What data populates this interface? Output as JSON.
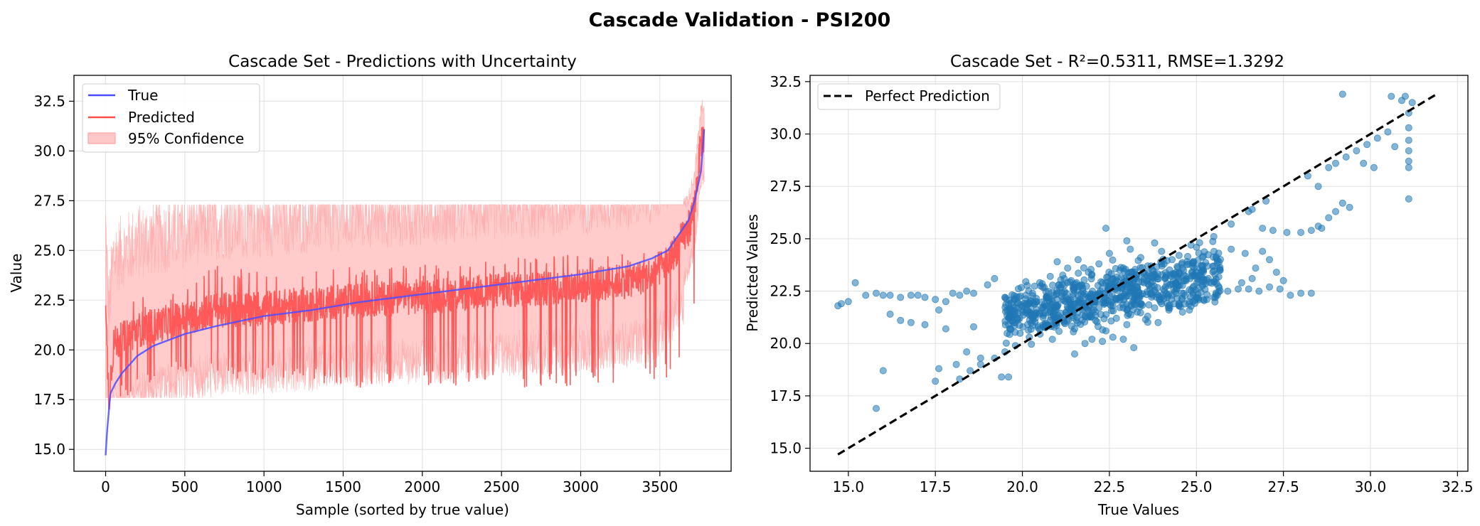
{
  "figure": {
    "suptitle": "Cascade Validation - PSI200"
  },
  "chart_data": [
    {
      "type": "line",
      "title": "Cascade Set - Predictions with Uncertainty",
      "xlabel": "Sample (sorted by true value)",
      "ylabel": "Value",
      "xlim": [
        -200,
        3950
      ],
      "ylim": [
        13.9,
        33.8
      ],
      "xticks": [
        0,
        500,
        1000,
        1500,
        2000,
        2500,
        3000,
        3500
      ],
      "xtick_labels": [
        "0",
        "500",
        "1000",
        "1500",
        "2000",
        "2500",
        "3000",
        "3500"
      ],
      "yticks": [
        15.0,
        17.5,
        20.0,
        22.5,
        25.0,
        27.5,
        30.0,
        32.5
      ],
      "ytick_labels": [
        "15.0",
        "17.5",
        "20.0",
        "22.5",
        "25.0",
        "27.5",
        "30.0",
        "32.5"
      ],
      "grid": true,
      "legend_position": "top-left",
      "n_samples": 3780,
      "series": [
        {
          "name": "True",
          "color": "#4c4cff",
          "x": [
            0,
            10,
            30,
            60,
            100,
            200,
            300,
            500,
            700,
            1000,
            1300,
            1600,
            2000,
            2500,
            3000,
            3300,
            3450,
            3550,
            3620,
            3680,
            3720,
            3760,
            3780
          ],
          "values": [
            14.7,
            16.0,
            17.8,
            18.3,
            18.8,
            19.7,
            20.2,
            20.8,
            21.2,
            21.7,
            22.0,
            22.4,
            22.8,
            23.3,
            23.8,
            24.2,
            24.6,
            25.0,
            25.8,
            26.5,
            27.5,
            29.0,
            31.1
          ]
        },
        {
          "name": "Predicted",
          "color": "#ff4c4c",
          "x": [
            0,
            20,
            50,
            100,
            200,
            300,
            500,
            700,
            1000,
            1300,
            1600,
            2000,
            2500,
            3000,
            3300,
            3450,
            3550,
            3620,
            3680,
            3720,
            3760,
            3780
          ],
          "values": [
            21.8,
            17.5,
            20.3,
            20.5,
            21.0,
            21.2,
            21.6,
            22.0,
            22.1,
            22.3,
            22.5,
            22.7,
            23.0,
            23.2,
            23.5,
            23.8,
            24.4,
            25.3,
            26.0,
            27.3,
            30.5,
            30.8
          ],
          "band_min": [
            17.0,
            17.0,
            17.0,
            17.5,
            18.0,
            18.3,
            18.8,
            18.6,
            18.5,
            18.3,
            18.0,
            18.2,
            18.0,
            18.2,
            18.3,
            18.3,
            18.6,
            19.0,
            20.0,
            22.0,
            26.5,
            27.0
          ],
          "band_max": [
            23.0,
            22.6,
            22.6,
            22.9,
            22.8,
            22.7,
            23.3,
            24.3,
            24.0,
            24.0,
            24.2,
            24.3,
            24.8,
            24.9,
            25.0,
            25.0,
            25.3,
            26.5,
            27.0,
            28.5,
            32.0,
            31.5
          ]
        },
        {
          "name": "95% Confidence",
          "color": "#ffc8c8",
          "band_min_value": 17.6,
          "band_max_value": 27.3
        }
      ]
    },
    {
      "type": "scatter",
      "title": "Cascade Set - R²=0.5311, RMSE=1.3292",
      "xlabel": "True Values",
      "ylabel": "Predicted Values",
      "xlim": [
        13.9,
        32.8
      ],
      "ylim": [
        13.9,
        32.8
      ],
      "xticks": [
        15.0,
        17.5,
        20.0,
        22.5,
        25.0,
        27.5,
        30.0,
        32.5
      ],
      "xtick_labels": [
        "15.0",
        "17.5",
        "20.0",
        "22.5",
        "25.0",
        "27.5",
        "30.0",
        "32.5"
      ],
      "yticks": [
        15.0,
        17.5,
        20.0,
        22.5,
        25.0,
        27.5,
        30.0,
        32.5
      ],
      "ytick_labels": [
        "15.0",
        "17.5",
        "20.0",
        "22.5",
        "25.0",
        "27.5",
        "30.0",
        "32.5"
      ],
      "grid": true,
      "legend_position": "top-left",
      "point_color": "#1f77b4",
      "series": [
        {
          "name": "Perfect Prediction",
          "color": "#000000",
          "x": [
            14.7,
            31.9
          ],
          "values": [
            14.7,
            31.9
          ]
        }
      ],
      "points": [
        [
          14.7,
          21.8
        ],
        [
          14.8,
          21.9
        ],
        [
          15.0,
          22.0
        ],
        [
          15.2,
          22.9
        ],
        [
          15.5,
          22.3
        ],
        [
          15.8,
          22.4
        ],
        [
          16.0,
          22.3
        ],
        [
          16.2,
          22.3
        ],
        [
          16.5,
          22.2
        ],
        [
          16.8,
          22.3
        ],
        [
          17.0,
          22.3
        ],
        [
          17.2,
          22.2
        ],
        [
          17.5,
          22.1
        ],
        [
          17.6,
          21.6
        ],
        [
          17.8,
          22.0
        ],
        [
          18.0,
          22.4
        ],
        [
          18.2,
          22.3
        ],
        [
          18.4,
          22.5
        ],
        [
          18.6,
          22.4
        ],
        [
          15.8,
          16.9
        ],
        [
          16.0,
          18.7
        ],
        [
          16.2,
          21.4
        ],
        [
          16.5,
          21.1
        ],
        [
          16.8,
          21.0
        ],
        [
          17.2,
          20.9
        ],
        [
          17.5,
          18.2
        ],
        [
          17.6,
          18.8
        ],
        [
          17.8,
          20.7
        ],
        [
          18.1,
          19.0
        ],
        [
          18.4,
          19.6
        ],
        [
          18.6,
          20.8
        ],
        [
          18.8,
          19.3
        ],
        [
          19.0,
          22.8
        ],
        [
          19.2,
          23.1
        ],
        [
          19.4,
          18.4
        ],
        [
          19.6,
          18.4
        ],
        [
          18.2,
          18.3
        ],
        [
          18.5,
          18.7
        ],
        [
          18.8,
          19.0
        ],
        [
          19.2,
          19.3
        ],
        [
          19.5,
          19.6
        ],
        [
          19.8,
          19.9
        ],
        [
          20.2,
          20.3
        ],
        [
          20.6,
          20.8
        ],
        [
          21.0,
          21.2
        ],
        [
          21.5,
          21.6
        ],
        [
          22.0,
          22.1
        ],
        [
          22.5,
          22.6
        ],
        [
          23.0,
          23.0
        ],
        [
          23.5,
          23.4
        ],
        [
          24.0,
          23.8
        ],
        [
          24.5,
          24.2
        ],
        [
          25.0,
          24.6
        ],
        [
          25.5,
          25.1
        ],
        [
          26.0,
          25.7
        ],
        [
          26.5,
          26.3
        ],
        [
          27.0,
          26.8
        ],
        [
          19.5,
          22.2
        ],
        [
          19.8,
          22.1
        ],
        [
          20.1,
          22.3
        ],
        [
          20.4,
          22.0
        ],
        [
          20.7,
          22.2
        ],
        [
          21.0,
          22.4
        ],
        [
          21.3,
          22.1
        ],
        [
          21.6,
          22.3
        ],
        [
          21.9,
          22.2
        ],
        [
          22.2,
          22.4
        ],
        [
          22.5,
          22.3
        ],
        [
          22.8,
          22.2
        ],
        [
          23.1,
          22.5
        ],
        [
          23.4,
          22.3
        ],
        [
          23.7,
          22.4
        ],
        [
          24.0,
          22.2
        ],
        [
          24.3,
          22.3
        ],
        [
          24.6,
          22.1
        ],
        [
          24.9,
          22.0
        ],
        [
          25.2,
          22.1
        ],
        [
          25.5,
          22.2
        ],
        [
          20.0,
          21.5
        ],
        [
          20.3,
          21.2
        ],
        [
          20.6,
          20.9
        ],
        [
          20.9,
          21.4
        ],
        [
          21.2,
          21.0
        ],
        [
          21.5,
          20.7
        ],
        [
          21.8,
          21.3
        ],
        [
          22.1,
          21.1
        ],
        [
          22.4,
          20.6
        ],
        [
          22.7,
          21.2
        ],
        [
          23.0,
          20.9
        ],
        [
          23.3,
          21.5
        ],
        [
          23.6,
          21.3
        ],
        [
          23.9,
          21.0
        ],
        [
          24.2,
          21.7
        ],
        [
          24.5,
          21.9
        ],
        [
          24.8,
          21.6
        ],
        [
          21.0,
          23.9
        ],
        [
          21.3,
          23.6
        ],
        [
          21.6,
          24.0
        ],
        [
          21.9,
          23.4
        ],
        [
          22.2,
          23.8
        ],
        [
          22.5,
          24.3
        ],
        [
          22.8,
          23.5
        ],
        [
          23.1,
          24.5
        ],
        [
          23.4,
          24.1
        ],
        [
          23.7,
          23.7
        ],
        [
          24.0,
          24.4
        ],
        [
          24.3,
          24.0
        ],
        [
          24.6,
          23.6
        ],
        [
          24.9,
          23.9
        ],
        [
          25.2,
          23.5
        ],
        [
          22.4,
          25.5
        ],
        [
          23.0,
          24.9
        ],
        [
          23.8,
          24.8
        ],
        [
          20.5,
          22.9
        ],
        [
          20.8,
          23.2
        ],
        [
          21.1,
          22.7
        ],
        [
          21.4,
          23.0
        ],
        [
          21.7,
          22.8
        ],
        [
          22.0,
          23.3
        ],
        [
          22.3,
          22.9
        ],
        [
          22.6,
          23.1
        ],
        [
          22.9,
          22.8
        ],
        [
          23.2,
          23.0
        ],
        [
          23.5,
          22.9
        ],
        [
          23.8,
          23.3
        ],
        [
          24.1,
          23.1
        ],
        [
          24.4,
          22.9
        ],
        [
          24.7,
          23.2
        ],
        [
          25.0,
          23.4
        ],
        [
          20.2,
          21.9
        ],
        [
          20.6,
          21.7
        ],
        [
          21.0,
          21.8
        ],
        [
          21.4,
          21.6
        ],
        [
          21.8,
          21.9
        ],
        [
          22.2,
          21.7
        ],
        [
          22.6,
          21.8
        ],
        [
          23.0,
          21.6
        ],
        [
          23.4,
          21.9
        ],
        [
          23.8,
          21.7
        ],
        [
          24.2,
          21.8
        ],
        [
          24.6,
          21.5
        ],
        [
          22.0,
          20.2
        ],
        [
          22.3,
          20.1
        ],
        [
          22.6,
          20.3
        ],
        [
          22.9,
          20.2
        ],
        [
          23.2,
          19.8
        ],
        [
          21.5,
          19.5
        ],
        [
          21.8,
          20.0
        ],
        [
          24.0,
          21.9
        ],
        [
          24.5,
          21.8
        ],
        [
          24.8,
          22.0
        ],
        [
          25.0,
          22.2
        ],
        [
          25.3,
          22.1
        ],
        [
          25.6,
          22.3
        ],
        [
          25.9,
          22.5
        ],
        [
          26.2,
          22.6
        ],
        [
          26.5,
          22.6
        ],
        [
          26.8,
          22.5
        ],
        [
          27.1,
          22.7
        ],
        [
          27.4,
          22.6
        ],
        [
          27.7,
          22.3
        ],
        [
          28.0,
          22.4
        ],
        [
          28.3,
          22.4
        ],
        [
          26.3,
          22.9
        ],
        [
          26.6,
          23.1
        ],
        [
          26.0,
          24.5
        ],
        [
          26.4,
          24.3
        ],
        [
          26.9,
          24.4
        ],
        [
          27.1,
          24.0
        ],
        [
          27.3,
          23.4
        ],
        [
          27.5,
          23.0
        ],
        [
          26.7,
          23.6
        ],
        [
          26.6,
          26.4
        ],
        [
          26.9,
          25.5
        ],
        [
          27.2,
          25.4
        ],
        [
          27.6,
          25.3
        ],
        [
          28.0,
          25.3
        ],
        [
          28.3,
          25.4
        ],
        [
          28.5,
          25.6
        ],
        [
          28.6,
          25.5
        ],
        [
          28.8,
          26.0
        ],
        [
          29.0,
          26.3
        ],
        [
          29.2,
          26.7
        ],
        [
          29.4,
          26.5
        ],
        [
          28.2,
          28.0
        ],
        [
          28.5,
          27.5
        ],
        [
          28.8,
          28.4
        ],
        [
          29.0,
          28.6
        ],
        [
          29.3,
          28.9
        ],
        [
          29.6,
          29.2
        ],
        [
          29.9,
          29.5
        ],
        [
          30.2,
          29.8
        ],
        [
          30.5,
          30.1
        ],
        [
          30.7,
          29.4
        ],
        [
          30.9,
          31.6
        ],
        [
          31.0,
          31.8
        ],
        [
          31.1,
          31.0
        ],
        [
          31.1,
          30.3
        ],
        [
          31.1,
          29.7
        ],
        [
          31.1,
          29.2
        ],
        [
          31.1,
          28.7
        ],
        [
          31.1,
          28.4
        ],
        [
          31.1,
          26.9
        ],
        [
          31.2,
          31.5
        ],
        [
          30.6,
          31.8
        ],
        [
          29.2,
          31.9
        ],
        [
          29.8,
          28.6
        ],
        [
          30.1,
          28.4
        ]
      ]
    }
  ]
}
